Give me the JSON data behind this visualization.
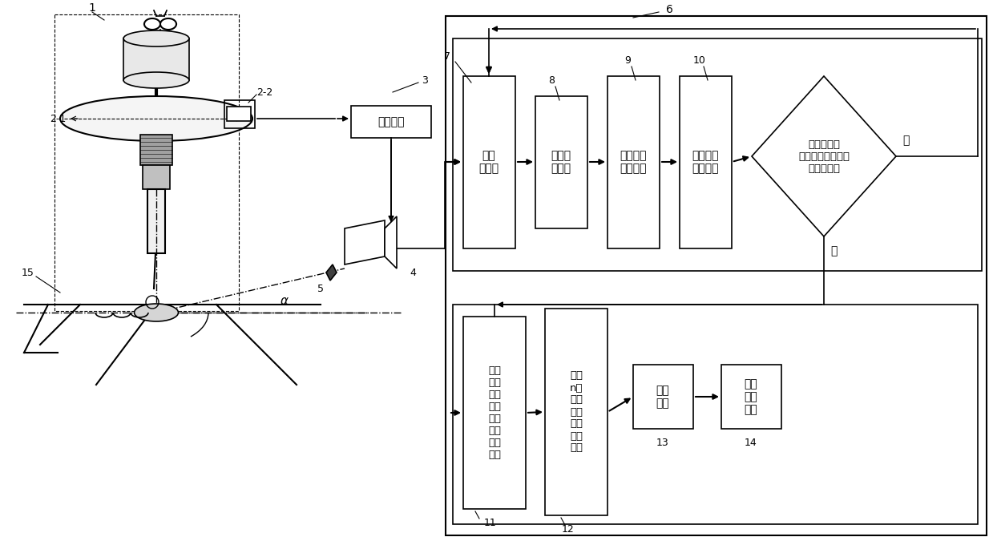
{
  "bg_color": "#ffffff",
  "fig_width": 12.39,
  "fig_height": 6.85,
  "dpi": 100,
  "labels": {
    "1": "1",
    "2_1": "2-1",
    "2_2": "2-2",
    "3": "3",
    "4": "4",
    "5": "5",
    "6": "6",
    "7": "7",
    "8": "8",
    "9": "9",
    "10": "10",
    "11": "11",
    "12": "12",
    "13": "13",
    "14": "14",
    "15": "15",
    "alpha": "α"
  },
  "box3_text": "隔离模块",
  "box7_text": "图像\n采集卡",
  "box8_text": "图像去\n噪模块",
  "box9_text": "电弧中心\n识别模块",
  "box10_text": "坡口边缘\n识别模块",
  "diamond_text": "是否处理完\n当前电弧旋转周期\n的两幅图像",
  "no_text": "否",
  "yes_text": "是",
  "box11_text": "当前\n电弧\n旋转\n周期\n焊缝\n偏差\n提取\n模块",
  "box12_text": "最近\nn个\n电弧\n旋转\n周期\n焊缝\n偏差",
  "box13_text": "统计\n模块",
  "box14_text": "焊缝\n偏差\n输出"
}
